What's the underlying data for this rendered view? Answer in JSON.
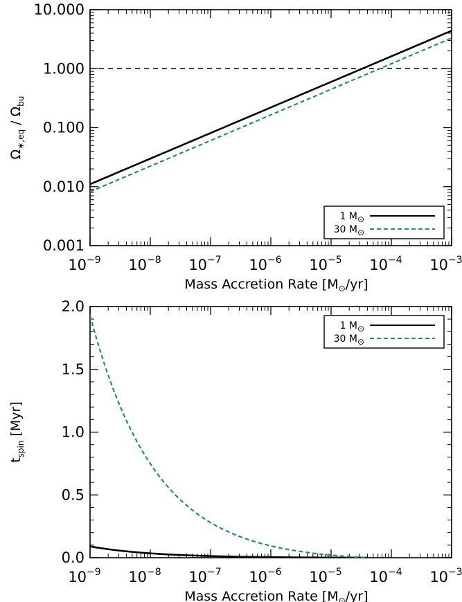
{
  "chart_data": [
    {
      "type": "line",
      "title": "",
      "xlabel": "Mass Accretion Rate [M⊙/yr]",
      "ylabel": "Ω∗,eq / Ωbu",
      "xscale": "log",
      "yscale": "log",
      "xlim": [
        1e-09,
        0.001
      ],
      "ylim": [
        0.001,
        10
      ],
      "x_ticks": [
        {
          "value": 1e-09,
          "base": "10",
          "exp": "−9"
        },
        {
          "value": 1e-08,
          "base": "10",
          "exp": "−8"
        },
        {
          "value": 1e-07,
          "base": "10",
          "exp": "−7"
        },
        {
          "value": 1e-06,
          "base": "10",
          "exp": "−6"
        },
        {
          "value": 1e-05,
          "base": "10",
          "exp": "−5"
        },
        {
          "value": 0.0001,
          "base": "10",
          "exp": "−4"
        },
        {
          "value": 0.001,
          "base": "10",
          "exp": "−3"
        }
      ],
      "y_ticks": [
        {
          "value": 0.001,
          "label": "0.001"
        },
        {
          "value": 0.01,
          "label": "0.010"
        },
        {
          "value": 0.1,
          "label": "0.100"
        },
        {
          "value": 1,
          "label": "1.000"
        },
        {
          "value": 10,
          "label": "10.000"
        }
      ],
      "reference_line": {
        "y": 1,
        "style": "dashed",
        "color": "#000000"
      },
      "legend_position": "bottom-right",
      "series": [
        {
          "name": "1 M⊙",
          "color": "#000000",
          "dash": "solid",
          "width": 2.6,
          "x": [
            1e-09,
            0.001
          ],
          "y": [
            0.011,
            4.4
          ]
        },
        {
          "name": "30 M⊙",
          "color": "#1a8a8a",
          "dash": "dashed",
          "width": 2.2,
          "x": [
            1e-09,
            0.001
          ],
          "y": [
            0.0082,
            3.3
          ]
        }
      ]
    },
    {
      "type": "line",
      "title": "",
      "xlabel": "Mass Accretion Rate [M⊙/yr]",
      "ylabel": "tspin [Myr]",
      "xscale": "log",
      "yscale": "linear",
      "xlim": [
        1e-09,
        0.001
      ],
      "ylim": [
        0,
        2
      ],
      "x_ticks": [
        {
          "value": 1e-09,
          "base": "10",
          "exp": "−9"
        },
        {
          "value": 1e-08,
          "base": "10",
          "exp": "−8"
        },
        {
          "value": 1e-07,
          "base": "10",
          "exp": "−7"
        },
        {
          "value": 1e-06,
          "base": "10",
          "exp": "−6"
        },
        {
          "value": 1e-05,
          "base": "10",
          "exp": "−5"
        },
        {
          "value": 0.0001,
          "base": "10",
          "exp": "−4"
        },
        {
          "value": 0.001,
          "base": "10",
          "exp": "−3"
        }
      ],
      "y_ticks": [
        {
          "value": 0,
          "label": "0.0"
        },
        {
          "value": 0.5,
          "label": "0.5"
        },
        {
          "value": 1,
          "label": "1.0"
        },
        {
          "value": 1.5,
          "label": "1.5"
        },
        {
          "value": 2,
          "label": "2.0"
        }
      ],
      "legend_position": "top-right",
      "series": [
        {
          "name": "1 M⊙",
          "color": "#000000",
          "dash": "solid",
          "width": 2.6,
          "x_range": [
            1e-09,
            4e-05
          ],
          "y_at_start": 0.09
        },
        {
          "name": "30 M⊙",
          "color": "#1a8a8a",
          "dash": "dashed",
          "width": 2.2,
          "x_range": [
            1e-09,
            4e-05
          ],
          "y_at_start": 1.93
        }
      ]
    }
  ]
}
